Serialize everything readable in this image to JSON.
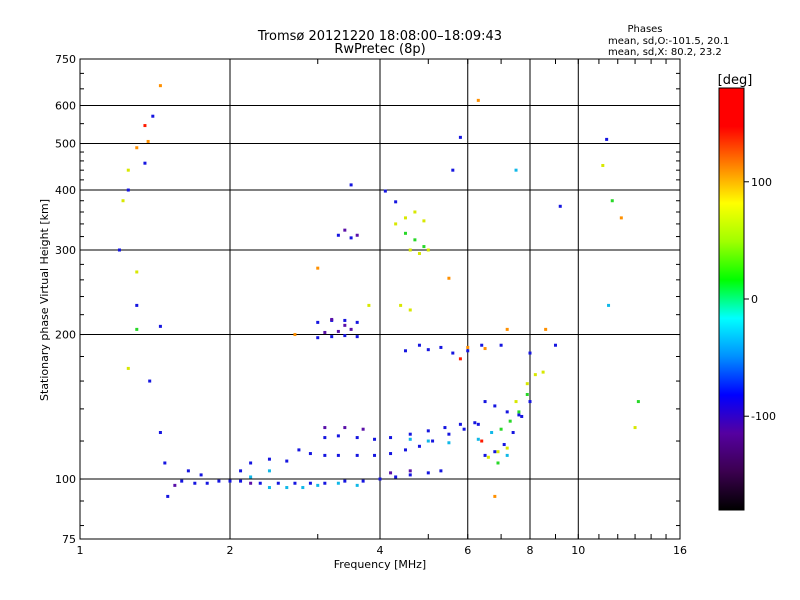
{
  "chart_data": {
    "type": "scatter",
    "title": "Tromsø 20121220 18:08:00–18:09:43",
    "subtitle": "RwPretec (8p)",
    "xlabel": "Frequency [MHz]",
    "ylabel": "Stationary phase Virtual Height [km]",
    "x_scale": "log",
    "y_scale": "log",
    "xlim": [
      1,
      16
    ],
    "ylim": [
      75,
      750
    ],
    "x_ticks": [
      "1",
      "2",
      "4",
      "6",
      "8",
      "10",
      "16"
    ],
    "y_ticks": [
      "75",
      "100",
      "200",
      "300",
      "400",
      "500",
      "600",
      "750"
    ],
    "grid": true,
    "phases_header": "Phases",
    "phases_o": "mean, sd,O:-101.5, 20.1",
    "phases_x": "mean, sd,X:  80.2, 23.2",
    "colorbar": {
      "label": "[deg]",
      "range": [
        -180,
        180
      ],
      "ticks": [
        "100",
        "0",
        "-100"
      ],
      "colors": [
        "#000000",
        "#3b004f",
        "#5500a0",
        "#0000ff",
        "#0090ff",
        "#00ffff",
        "#00ff00",
        "#a0ff00",
        "#ffff00",
        "#ff8000",
        "#ff0000",
        "#ff0000"
      ]
    },
    "series": [
      {
        "color_group": "blue",
        "points": [
          [
            1.6,
            99
          ],
          [
            1.7,
            98
          ],
          [
            1.8,
            98
          ],
          [
            1.9,
            99
          ],
          [
            2.0,
            99
          ],
          [
            2.1,
            99
          ],
          [
            2.3,
            98
          ],
          [
            2.5,
            98
          ],
          [
            2.7,
            98
          ],
          [
            2.9,
            98
          ],
          [
            3.1,
            98
          ],
          [
            3.4,
            99
          ],
          [
            3.7,
            99
          ],
          [
            4.0,
            100
          ],
          [
            4.3,
            101
          ],
          [
            4.6,
            102
          ],
          [
            5.0,
            103
          ],
          [
            5.3,
            104
          ],
          [
            1.65,
            104
          ],
          [
            1.75,
            102
          ],
          [
            2.1,
            104
          ],
          [
            2.2,
            108
          ],
          [
            2.4,
            110
          ],
          [
            2.6,
            109
          ],
          [
            2.75,
            115
          ],
          [
            2.9,
            113
          ],
          [
            3.1,
            112
          ],
          [
            3.3,
            112
          ],
          [
            3.6,
            112
          ],
          [
            3.9,
            112
          ],
          [
            4.2,
            113
          ],
          [
            4.5,
            115
          ],
          [
            4.8,
            117
          ],
          [
            5.1,
            120
          ],
          [
            5.5,
            124
          ],
          [
            5.9,
            127
          ],
          [
            6.3,
            130
          ],
          [
            3.1,
            122
          ],
          [
            3.3,
            123
          ],
          [
            3.6,
            122
          ],
          [
            3.9,
            121
          ],
          [
            4.2,
            122
          ],
          [
            4.6,
            124
          ],
          [
            5.0,
            126
          ],
          [
            5.4,
            128
          ],
          [
            5.8,
            130
          ],
          [
            6.2,
            131
          ],
          [
            6.5,
            112
          ],
          [
            6.8,
            114
          ],
          [
            7.1,
            118
          ],
          [
            7.4,
            125
          ],
          [
            7.7,
            135
          ],
          [
            8.0,
            145
          ],
          [
            6.5,
            145
          ],
          [
            6.8,
            142
          ],
          [
            7.2,
            138
          ],
          [
            7.6,
            136
          ],
          [
            3.0,
            212
          ],
          [
            3.2,
            214
          ],
          [
            3.4,
            214
          ],
          [
            3.6,
            212
          ],
          [
            3.0,
            197
          ],
          [
            3.2,
            198
          ],
          [
            3.4,
            199
          ],
          [
            3.6,
            198
          ],
          [
            3.3,
            322
          ],
          [
            3.5,
            318
          ],
          [
            3.5,
            410
          ],
          [
            4.1,
            398
          ],
          [
            4.3,
            378
          ],
          [
            5.6,
            440
          ],
          [
            5.8,
            515
          ],
          [
            1.4,
            570
          ],
          [
            1.35,
            455
          ],
          [
            1.25,
            400
          ],
          [
            1.2,
            300
          ],
          [
            1.3,
            230
          ],
          [
            1.45,
            208
          ],
          [
            1.38,
            160
          ],
          [
            1.45,
            125
          ],
          [
            1.48,
            108
          ],
          [
            1.5,
            92
          ],
          [
            9.2,
            370
          ],
          [
            11.4,
            510
          ],
          [
            4.5,
            185
          ],
          [
            4.8,
            190
          ],
          [
            5.0,
            186
          ],
          [
            5.3,
            188
          ],
          [
            5.6,
            183
          ],
          [
            6.0,
            185
          ],
          [
            6.4,
            190
          ],
          [
            7.0,
            190
          ],
          [
            8.0,
            183
          ],
          [
            9.0,
            190
          ]
        ]
      },
      {
        "color_group": "purple",
        "points": [
          [
            3.1,
            202
          ],
          [
            3.3,
            203
          ],
          [
            3.5,
            205
          ],
          [
            3.2,
            215
          ],
          [
            3.4,
            209
          ],
          [
            3.4,
            330
          ],
          [
            3.6,
            322
          ],
          [
            3.1,
            128
          ],
          [
            3.4,
            128
          ],
          [
            3.7,
            127
          ],
          [
            1.55,
            97
          ],
          [
            2.2,
            98
          ],
          [
            4.2,
            103
          ],
          [
            4.6,
            104
          ]
        ]
      },
      {
        "color_group": "cyan",
        "points": [
          [
            2.4,
            96
          ],
          [
            2.6,
            96
          ],
          [
            2.8,
            96
          ],
          [
            3.0,
            97
          ],
          [
            3.3,
            98
          ],
          [
            3.6,
            97
          ],
          [
            2.2,
            101
          ],
          [
            2.4,
            104
          ],
          [
            4.6,
            121
          ],
          [
            5.0,
            120
          ],
          [
            5.5,
            119
          ],
          [
            6.3,
            121
          ],
          [
            6.7,
            125
          ],
          [
            7.2,
            112
          ],
          [
            7.5,
            440
          ],
          [
            11.5,
            230
          ]
        ]
      },
      {
        "color_group": "green",
        "points": [
          [
            1.3,
            205
          ],
          [
            4.5,
            325
          ],
          [
            4.7,
            315
          ],
          [
            4.9,
            305
          ],
          [
            7.0,
            127
          ],
          [
            7.3,
            132
          ],
          [
            7.6,
            138
          ],
          [
            7.9,
            150
          ],
          [
            6.9,
            108
          ],
          [
            11.7,
            380
          ],
          [
            13.2,
            145
          ]
        ]
      },
      {
        "color_group": "yellow",
        "points": [
          [
            4.3,
            340
          ],
          [
            4.5,
            350
          ],
          [
            4.7,
            360
          ],
          [
            4.9,
            345
          ],
          [
            4.6,
            300
          ],
          [
            4.8,
            295
          ],
          [
            5.0,
            300
          ],
          [
            4.4,
            230
          ],
          [
            4.6,
            225
          ],
          [
            3.8,
            230
          ],
          [
            6.6,
            111
          ],
          [
            6.9,
            114
          ],
          [
            7.2,
            116
          ],
          [
            7.5,
            145
          ],
          [
            7.9,
            158
          ],
          [
            8.2,
            165
          ],
          [
            8.5,
            167
          ],
          [
            1.25,
            440
          ],
          [
            1.22,
            380
          ],
          [
            1.3,
            270
          ],
          [
            1.25,
            170
          ],
          [
            11.2,
            450
          ],
          [
            13.0,
            128
          ]
        ]
      },
      {
        "color_group": "orange",
        "points": [
          [
            1.45,
            660
          ],
          [
            6.3,
            615
          ],
          [
            6.0,
            188
          ],
          [
            6.5,
            187
          ],
          [
            5.5,
            262
          ],
          [
            7.2,
            205
          ],
          [
            8.6,
            205
          ],
          [
            3.0,
            275
          ],
          [
            6.8,
            92
          ],
          [
            1.3,
            490
          ],
          [
            1.37,
            505
          ],
          [
            12.2,
            350
          ],
          [
            2.7,
            200
          ]
        ]
      },
      {
        "color_group": "red",
        "points": [
          [
            1.35,
            545
          ],
          [
            6.4,
            120
          ],
          [
            5.8,
            178
          ]
        ]
      }
    ]
  }
}
